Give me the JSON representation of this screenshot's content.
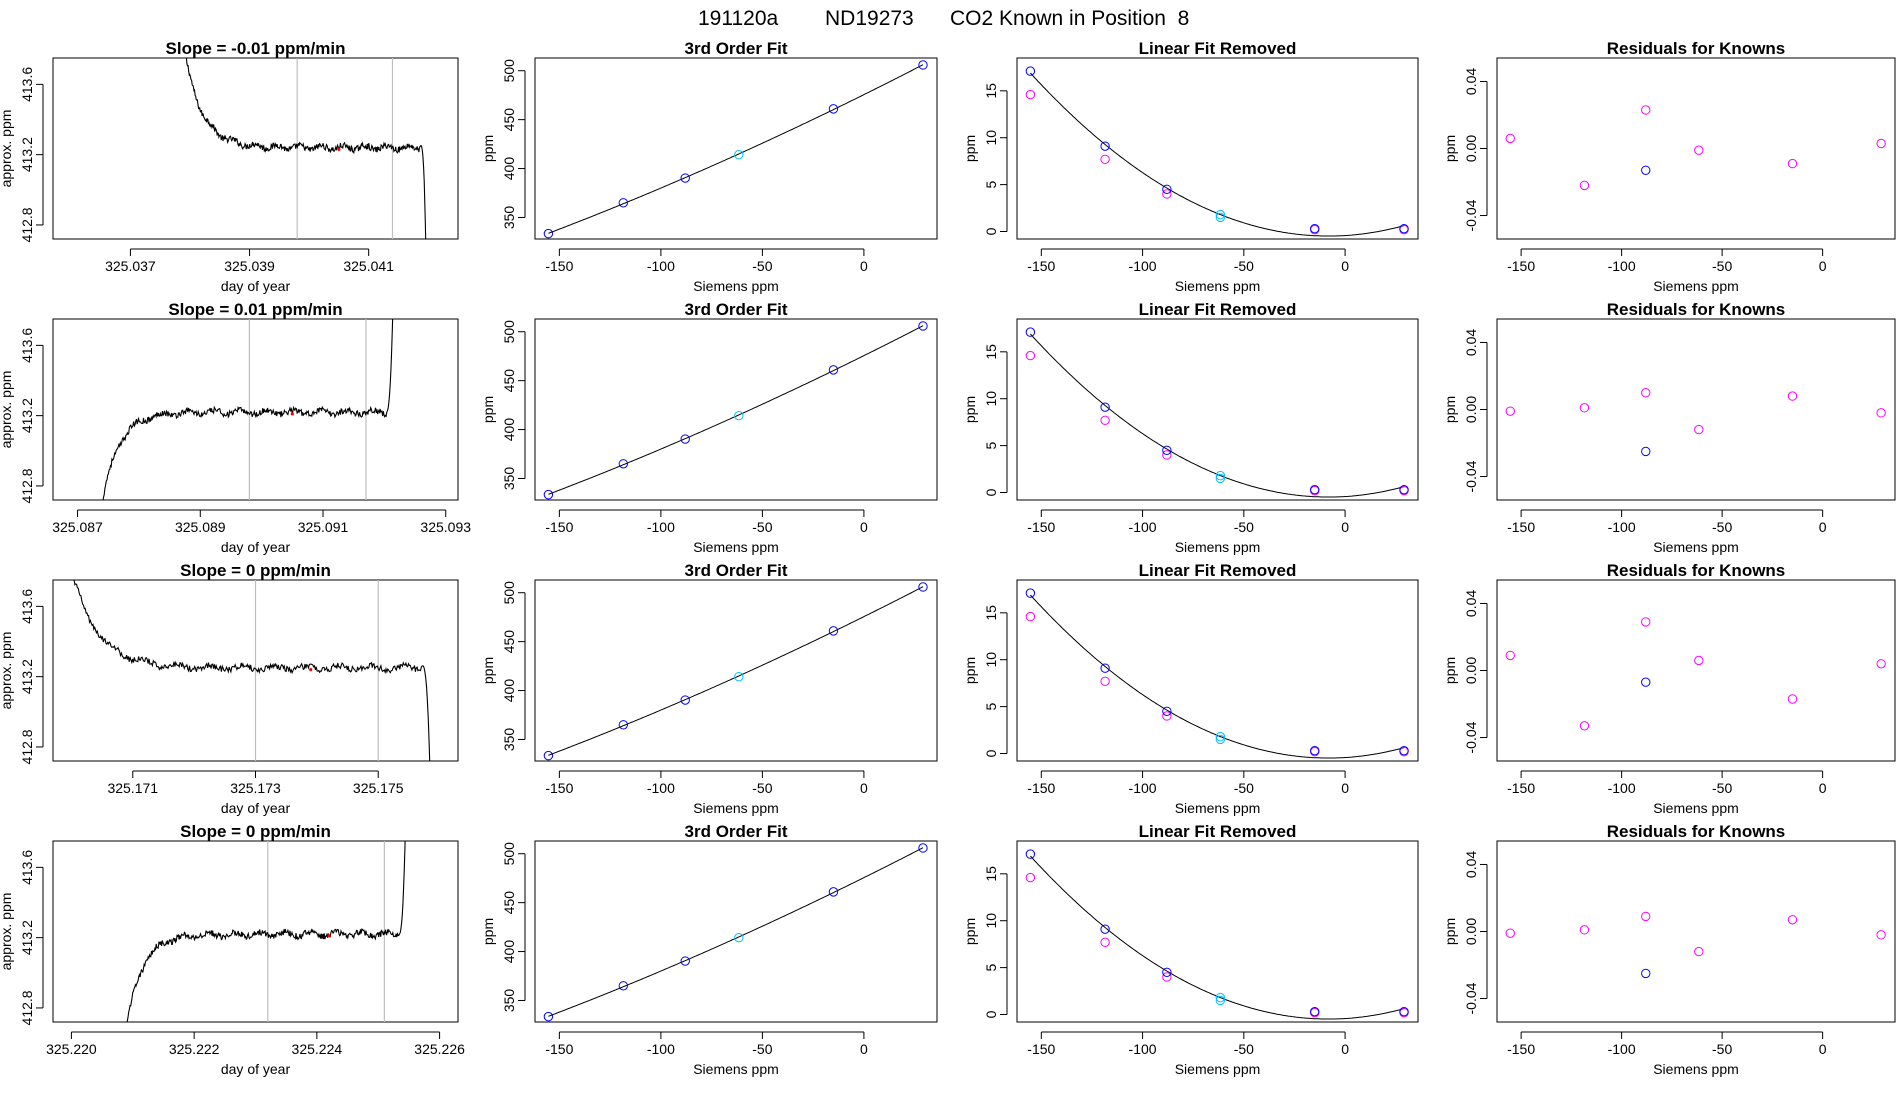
{
  "figure": {
    "title_parts": [
      "191120a",
      "ND19273",
      "CO2 Known in Position  8"
    ]
  },
  "colors": {
    "axes": "#000000",
    "line": "#000000",
    "blue_point": "#0000ff",
    "magenta_point": "#ff00ff",
    "cyan_point": "#00bfff",
    "cursor": "#bebebe"
  },
  "chart_data": [
    {
      "type": "line",
      "row": 0,
      "title": "Slope =  -0.01  ppm/min",
      "xlabel": "day of year",
      "ylabel": "approx. ppm",
      "xlim": [
        325.0357,
        325.0425
      ],
      "ylim": [
        412.72,
        413.75
      ],
      "xticks": [
        325.037,
        325.039,
        325.041
      ],
      "xtick_labels": [
        "325.037",
        "325.039",
        "325.041"
      ],
      "yticks": [
        412.8,
        413.2,
        413.6
      ],
      "ytick_labels": [
        "412.8",
        "413.2",
        "413.6"
      ],
      "start": 325.0379,
      "end": 325.042,
      "vlines": [
        325.0398,
        325.0414
      ],
      "red_x": 325.0405,
      "shape": "down_drop",
      "pre_window_level": 413.8,
      "plateau": 413.24
    },
    {
      "type": "scatter_fit",
      "row": 0,
      "title": "3rd Order Fit",
      "xlabel": "Siemens ppm",
      "ylabel": "ppm",
      "xlim": [
        -162,
        36
      ],
      "ylim": [
        328,
        513
      ],
      "xticks": [
        -150,
        -100,
        -50,
        0
      ],
      "xtick_labels": [
        "-150",
        "-100",
        "-50",
        "0"
      ],
      "yticks": [
        350,
        400,
        450,
        500
      ],
      "ytick_labels": [
        "350",
        "400",
        "450",
        "500"
      ],
      "curve": "cubic",
      "points_blue": [
        [
          -155.4,
          333.5
        ],
        [
          -118.5,
          365.0
        ],
        [
          -88.0,
          390.3
        ],
        [
          -15.0,
          461.0
        ],
        [
          29.1,
          505.9
        ]
      ],
      "points_cyan": [
        [
          -61.6,
          414.2
        ]
      ]
    },
    {
      "type": "scatter_fit",
      "row": 0,
      "title": "Linear Fit Removed",
      "xlabel": "Siemens ppm",
      "ylabel": "ppm",
      "xlim": [
        -162,
        36
      ],
      "ylim": [
        -0.8,
        18.5
      ],
      "xticks": [
        -150,
        -100,
        -50,
        0
      ],
      "xtick_labels": [
        "-150",
        "-100",
        "-50",
        "0"
      ],
      "yticks": [
        0,
        5,
        10,
        15
      ],
      "ytick_labels": [
        "0",
        "5",
        "10",
        "15"
      ],
      "curve": "quadratic",
      "points_blue": [
        [
          -155.4,
          17.1
        ],
        [
          -118.5,
          9.1
        ],
        [
          -88.0,
          4.5
        ],
        [
          -15.0,
          0.3
        ],
        [
          29.1,
          0.3
        ]
      ],
      "points_magenta": [
        [
          -155.4,
          14.6
        ],
        [
          -118.5,
          7.7
        ],
        [
          -88.0,
          4.0
        ],
        [
          -15.0,
          0.2
        ],
        [
          29.1,
          0.2
        ]
      ],
      "points_cyan": [
        [
          -61.6,
          1.8
        ],
        [
          -61.6,
          1.5
        ]
      ]
    },
    {
      "type": "scatter",
      "row": 0,
      "title": "Residuals for Knowns",
      "xlabel": "Siemens ppm",
      "ylabel": "",
      "xlim": [
        -162,
        36
      ],
      "ylim": [
        -0.054,
        0.054
      ],
      "xticks": [
        -150,
        -100,
        -50,
        0
      ],
      "xtick_labels": [
        "-150",
        "-100",
        "-50",
        "0"
      ],
      "yticks": [
        -0.04,
        0.0,
        0.04
      ],
      "ytick_labels": [
        "-0.04",
        "0.00",
        "0.04"
      ],
      "points_magenta": [
        [
          -155.4,
          0.006
        ],
        [
          -118.5,
          -0.022
        ],
        [
          -88.0,
          0.023
        ],
        [
          -61.6,
          -0.001
        ],
        [
          -15.0,
          -0.009
        ],
        [
          29.1,
          0.003
        ]
      ],
      "points_blue": [
        [
          -88.0,
          -0.013
        ]
      ]
    },
    {
      "type": "line",
      "row": 1,
      "title": "Slope =  0.01  ppm/min",
      "xlabel": "day of year",
      "ylabel": "approx. ppm",
      "xlim": [
        325.0866,
        325.0932
      ],
      "ylim": [
        412.72,
        413.75
      ],
      "xticks": [
        325.087,
        325.089,
        325.091,
        325.093
      ],
      "xtick_labels": [
        "325.087",
        "325.089",
        "325.091",
        "325.093"
      ],
      "yticks": [
        412.8,
        413.2,
        413.6
      ],
      "ytick_labels": [
        "412.8",
        "413.2",
        "413.6"
      ],
      "start": 325.0874,
      "end": 325.0922,
      "vlines": [
        325.0898,
        325.0917
      ],
      "red_x": 325.0905,
      "shape": "up_rise",
      "pre_window_level": 412.7,
      "plateau": 413.22
    },
    {
      "type": "scatter_fit",
      "row": 1,
      "title": "3rd Order Fit",
      "xlabel": "Siemens ppm",
      "ylabel": "ppm",
      "xlim": [
        -162,
        36
      ],
      "ylim": [
        328,
        513
      ],
      "xticks": [
        -150,
        -100,
        -50,
        0
      ],
      "xtick_labels": [
        "-150",
        "-100",
        "-50",
        "0"
      ],
      "yticks": [
        350,
        400,
        450,
        500
      ],
      "ytick_labels": [
        "350",
        "400",
        "450",
        "500"
      ],
      "curve": "cubic",
      "points_blue": [
        [
          -155.4,
          333.5
        ],
        [
          -118.5,
          365.0
        ],
        [
          -88.0,
          390.3
        ],
        [
          -15.0,
          461.0
        ],
        [
          29.1,
          505.9
        ]
      ],
      "points_cyan": [
        [
          -61.6,
          414.2
        ]
      ]
    },
    {
      "type": "scatter_fit",
      "row": 1,
      "title": "Linear Fit Removed",
      "xlabel": "Siemens ppm",
      "ylabel": "ppm",
      "xlim": [
        -162,
        36
      ],
      "ylim": [
        -0.8,
        18.5
      ],
      "xticks": [
        -150,
        -100,
        -50,
        0
      ],
      "xtick_labels": [
        "-150",
        "-100",
        "-50",
        "0"
      ],
      "yticks": [
        0,
        5,
        10,
        15
      ],
      "ytick_labels": [
        "0",
        "5",
        "10",
        "15"
      ],
      "curve": "quadratic",
      "points_blue": [
        [
          -155.4,
          17.1
        ],
        [
          -118.5,
          9.1
        ],
        [
          -88.0,
          4.5
        ],
        [
          -15.0,
          0.3
        ],
        [
          29.1,
          0.3
        ]
      ],
      "points_magenta": [
        [
          -155.4,
          14.6
        ],
        [
          -118.5,
          7.7
        ],
        [
          -88.0,
          4.0
        ],
        [
          -15.0,
          0.2
        ],
        [
          29.1,
          0.2
        ]
      ],
      "points_cyan": [
        [
          -61.6,
          1.8
        ],
        [
          -61.6,
          1.5
        ]
      ]
    },
    {
      "type": "scatter",
      "row": 1,
      "title": "Residuals for Knowns",
      "xlabel": "Siemens ppm",
      "ylabel": "",
      "xlim": [
        -162,
        36
      ],
      "ylim": [
        -0.054,
        0.054
      ],
      "xticks": [
        -150,
        -100,
        -50,
        0
      ],
      "xtick_labels": [
        "-150",
        "-100",
        "-50",
        "0"
      ],
      "yticks": [
        -0.04,
        0.0,
        0.04
      ],
      "ytick_labels": [
        "-0.04",
        "0.00",
        "0.04"
      ],
      "points_magenta": [
        [
          -155.4,
          -0.001
        ],
        [
          -118.5,
          0.001
        ],
        [
          -88.0,
          0.01
        ],
        [
          -61.6,
          -0.012
        ],
        [
          -15.0,
          0.008
        ],
        [
          29.1,
          -0.002
        ]
      ],
      "points_blue": [
        [
          -88.0,
          -0.025
        ]
      ]
    },
    {
      "type": "line",
      "row": 2,
      "title": "Slope =  0  ppm/min",
      "xlabel": "day of year",
      "ylabel": "approx. ppm",
      "xlim": [
        325.1697,
        325.1763
      ],
      "ylim": [
        412.72,
        413.75
      ],
      "xticks": [
        325.171,
        325.173,
        325.175
      ],
      "xtick_labels": [
        "325.171",
        "325.173",
        "325.175"
      ],
      "yticks": [
        412.8,
        413.2,
        413.6
      ],
      "ytick_labels": [
        "412.8",
        "413.2",
        "413.6"
      ],
      "start": 325.17,
      "end": 325.1759,
      "vlines": [
        325.173,
        325.175
      ],
      "red_x": 325.1739,
      "shape": "down_drop",
      "pre_window_level": 413.8,
      "plateau": 413.25
    },
    {
      "type": "scatter_fit",
      "row": 2,
      "title": "3rd Order Fit",
      "xlabel": "Siemens ppm",
      "ylabel": "ppm",
      "xlim": [
        -162,
        36
      ],
      "ylim": [
        328,
        513
      ],
      "xticks": [
        -150,
        -100,
        -50,
        0
      ],
      "xtick_labels": [
        "-150",
        "-100",
        "-50",
        "0"
      ],
      "yticks": [
        350,
        400,
        450,
        500
      ],
      "ytick_labels": [
        "350",
        "400",
        "450",
        "500"
      ],
      "curve": "cubic",
      "points_blue": [
        [
          -155.4,
          333.5
        ],
        [
          -118.5,
          365.0
        ],
        [
          -88.0,
          390.3
        ],
        [
          -15.0,
          461.0
        ],
        [
          29.1,
          505.9
        ]
      ],
      "points_cyan": [
        [
          -61.6,
          414.2
        ]
      ]
    },
    {
      "type": "scatter_fit",
      "row": 2,
      "title": "Linear Fit Removed",
      "xlabel": "Siemens ppm",
      "ylabel": "ppm",
      "xlim": [
        -162,
        36
      ],
      "ylim": [
        -0.8,
        18.5
      ],
      "xticks": [
        -150,
        -100,
        -50,
        0
      ],
      "xtick_labels": [
        "-150",
        "-100",
        "-50",
        "0"
      ],
      "yticks": [
        0,
        5,
        10,
        15
      ],
      "ytick_labels": [
        "0",
        "5",
        "10",
        "15"
      ],
      "curve": "quadratic",
      "points_blue": [
        [
          -155.4,
          17.1
        ],
        [
          -118.5,
          9.1
        ],
        [
          -88.0,
          4.5
        ],
        [
          -15.0,
          0.3
        ],
        [
          29.1,
          0.3
        ]
      ],
      "points_magenta": [
        [
          -155.4,
          14.6
        ],
        [
          -118.5,
          7.7
        ],
        [
          -88.0,
          4.0
        ],
        [
          -15.0,
          0.2
        ],
        [
          29.1,
          0.2
        ]
      ],
      "points_cyan": [
        [
          -61.6,
          1.8
        ],
        [
          -61.6,
          1.5
        ]
      ]
    },
    {
      "type": "scatter",
      "row": 2,
      "title": "Residuals for Knowns",
      "xlabel": "Siemens ppm",
      "ylabel": "",
      "xlim": [
        -162,
        36
      ],
      "ylim": [
        -0.054,
        0.054
      ],
      "xticks": [
        -150,
        -100,
        -50,
        0
      ],
      "xtick_labels": [
        "-150",
        "-100",
        "-50",
        "0"
      ],
      "yticks": [
        -0.04,
        0.0,
        0.04
      ],
      "ytick_labels": [
        "-0.04",
        "0.00",
        "0.04"
      ],
      "points_magenta": [
        [
          -155.4,
          0.009
        ],
        [
          -118.5,
          -0.033
        ],
        [
          -88.0,
          0.029
        ],
        [
          -61.6,
          0.006
        ],
        [
          -15.0,
          -0.017
        ],
        [
          29.1,
          0.004
        ]
      ],
      "points_blue": [
        [
          -88.0,
          -0.007
        ]
      ]
    },
    {
      "type": "line",
      "row": 3,
      "title": "Slope =  0  ppm/min",
      "xlabel": "day of year",
      "ylabel": "approx. ppm",
      "xlim": [
        325.2197,
        325.2263
      ],
      "ylim": [
        412.72,
        413.75
      ],
      "xticks": [
        325.22,
        325.222,
        325.224,
        325.226
      ],
      "xtick_labels": [
        "325.220",
        "325.222",
        "325.224",
        "325.226"
      ],
      "yticks": [
        412.8,
        413.2,
        413.6
      ],
      "ytick_labels": [
        "412.8",
        "413.2",
        "413.6"
      ],
      "start": 325.2209,
      "end": 325.2255,
      "vlines": [
        325.2232,
        325.2251
      ],
      "red_x": 325.2242,
      "shape": "up_rise",
      "pre_window_level": 412.7,
      "plateau": 413.22
    },
    {
      "type": "scatter_fit",
      "row": 3,
      "title": "3rd Order Fit",
      "xlabel": "Siemens ppm",
      "ylabel": "ppm",
      "xlim": [
        -162,
        36
      ],
      "ylim": [
        328,
        513
      ],
      "xticks": [
        -150,
        -100,
        -50,
        0
      ],
      "xtick_labels": [
        "-150",
        "-100",
        "-50",
        "0"
      ],
      "yticks": [
        350,
        400,
        450,
        500
      ],
      "ytick_labels": [
        "350",
        "400",
        "450",
        "500"
      ],
      "curve": "cubic",
      "points_blue": [
        [
          -155.4,
          333.5
        ],
        [
          -118.5,
          365.0
        ],
        [
          -88.0,
          390.3
        ],
        [
          -15.0,
          461.0
        ],
        [
          29.1,
          505.9
        ]
      ],
      "points_cyan": [
        [
          -61.6,
          414.2
        ]
      ]
    },
    {
      "type": "scatter_fit",
      "row": 3,
      "title": "Linear Fit Removed",
      "xlabel": "Siemens ppm",
      "ylabel": "ppm",
      "xlim": [
        -162,
        36
      ],
      "ylim": [
        -0.8,
        18.5
      ],
      "xticks": [
        -150,
        -100,
        -50,
        0
      ],
      "xtick_labels": [
        "-150",
        "-100",
        "-50",
        "0"
      ],
      "yticks": [
        0,
        5,
        10,
        15
      ],
      "ytick_labels": [
        "0",
        "5",
        "10",
        "15"
      ],
      "curve": "quadratic",
      "points_blue": [
        [
          -155.4,
          17.1
        ],
        [
          -118.5,
          9.1
        ],
        [
          -88.0,
          4.5
        ],
        [
          -15.0,
          0.3
        ],
        [
          29.1,
          0.3
        ]
      ],
      "points_magenta": [
        [
          -155.4,
          14.6
        ],
        [
          -118.5,
          7.7
        ],
        [
          -88.0,
          4.0
        ],
        [
          -15.0,
          0.2
        ],
        [
          29.1,
          0.2
        ]
      ],
      "points_cyan": [
        [
          -61.6,
          1.8
        ],
        [
          -61.6,
          1.5
        ]
      ]
    },
    {
      "type": "scatter",
      "row": 3,
      "title": "Residuals for Knowns",
      "xlabel": "Siemens ppm",
      "ylabel": "",
      "xlim": [
        -162,
        36
      ],
      "ylim": [
        -0.054,
        0.054
      ],
      "xticks": [
        -150,
        -100,
        -50,
        0
      ],
      "xtick_labels": [
        "-150",
        "-100",
        "-50",
        "0"
      ],
      "yticks": [
        -0.04,
        0.0,
        0.04
      ],
      "ytick_labels": [
        "-0.04",
        "0.00",
        "0.04"
      ],
      "points_magenta": [
        [
          -155.4,
          -0.001
        ],
        [
          -118.5,
          0.001
        ],
        [
          -88.0,
          0.009
        ],
        [
          -61.6,
          -0.012
        ],
        [
          -15.0,
          0.007
        ],
        [
          29.1,
          -0.002
        ]
      ],
      "points_blue": [
        [
          -88.0,
          -0.025
        ]
      ]
    }
  ]
}
